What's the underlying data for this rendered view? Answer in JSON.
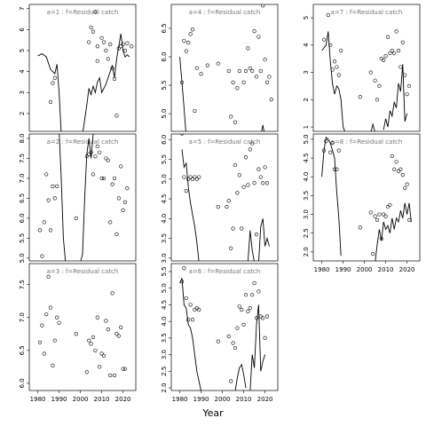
{
  "xlabel": "Year",
  "chart_data": [
    {
      "type": "scatter",
      "title": "a=1  :  f=Residual catch",
      "xlim": [
        1976,
        2026
      ],
      "ylim": [
        1.15,
        7.2
      ],
      "yticks": [
        2,
        3,
        4,
        5,
        6,
        7
      ],
      "series": [
        {
          "mode": "points",
          "x": [
            1986,
            1987,
            1988,
            2004,
            2005,
            2006,
            2007,
            2008,
            2008,
            2010,
            2011,
            2012,
            2013,
            2014,
            2015,
            2016,
            2017,
            2018,
            2019,
            2020,
            2021,
            2022,
            2024
          ],
          "values": [
            2.55,
            3.45,
            3.7,
            5.4,
            6.1,
            5.9,
            6.85,
            5.2,
            4.5,
            5.6,
            5.4,
            5.0,
            4.6,
            5.3,
            4.15,
            3.65,
            1.9,
            5.1,
            5.2,
            5.3,
            5.0,
            5.35,
            5.2
          ]
        },
        {
          "mode": "line",
          "x": [
            1980,
            1982,
            1984,
            1986,
            1988,
            1989,
            1990,
            1991,
            null,
            2001,
            2003,
            2004,
            2005,
            2006,
            2007,
            2008,
            2009,
            2010,
            2012,
            2014,
            2015,
            2016,
            2017,
            2018,
            2019,
            2020,
            2021,
            2022,
            2023
          ],
          "values": [
            4.75,
            4.85,
            4.7,
            4.1,
            3.9,
            4.35,
            3.0,
            1.0,
            null,
            1.0,
            2.4,
            3.2,
            2.9,
            3.3,
            3.0,
            3.5,
            3.7,
            3.0,
            3.4,
            4.0,
            4.3,
            3.7,
            4.6,
            5.2,
            5.8,
            5.0,
            4.7,
            4.8,
            4.7
          ]
        }
      ]
    },
    {
      "type": "scatter",
      "title": "a=2  :  f=Residual catch",
      "xlim": [
        1976,
        2026
      ],
      "ylim": [
        4.93,
        8.11
      ],
      "yticks": [
        {
          "value": 5,
          "label": "5.0"
        },
        5.5,
        {
          "value": 6,
          "label": "6.0"
        },
        6.5,
        {
          "value": 7,
          "label": "7.0"
        },
        7.5,
        {
          "value": 8,
          "label": "8.0"
        }
      ],
      "series": [
        {
          "mode": "points",
          "x": [
            1981,
            1982,
            1983,
            1984,
            1985,
            1986,
            1987,
            1988,
            1989,
            1998,
            2003,
            2004,
            2005,
            2006,
            2007,
            2008,
            2009,
            2010,
            2011,
            2012,
            2013,
            2014,
            2015,
            2016,
            2017,
            2018,
            2019,
            2020,
            2021,
            2022
          ],
          "values": [
            5.7,
            5.05,
            5.9,
            7.1,
            6.45,
            5.7,
            6.8,
            6.5,
            6.8,
            6.0,
            7.55,
            7.6,
            7.65,
            7.1,
            7.55,
            7.8,
            7.65,
            7.0,
            7.0,
            7.5,
            7.45,
            5.9,
            6.85,
            7.0,
            5.6,
            6.5,
            7.3,
            6.2,
            6.4,
            6.75
          ]
        },
        {
          "mode": "line",
          "x": [
            1990,
            1991,
            1992,
            1993,
            null,
            2000,
            2001,
            2002,
            2003,
            2004,
            2005,
            2006,
            2007
          ],
          "values": [
            8.2,
            7.0,
            5.5,
            4.9,
            null,
            4.9,
            5.1,
            6.5,
            7.6,
            8.0,
            7.5,
            8.1,
            8.2
          ]
        }
      ]
    },
    {
      "type": "scatter",
      "title": "a=3  :  f=Residual catch",
      "xlim": [
        1976,
        2026
      ],
      "ylim": [
        5.89,
        7.82
      ],
      "yticks": [
        {
          "value": 6,
          "label": "6.0"
        },
        6.5,
        {
          "value": 7,
          "label": "7.0"
        },
        7.5
      ],
      "xticks": [
        1980,
        1990,
        2000,
        2010,
        2020
      ],
      "series": [
        {
          "mode": "points",
          "x": [
            1981,
            1982,
            1983,
            1984,
            1985,
            1986,
            1987,
            1988,
            1989,
            1990,
            1998,
            2003,
            2004,
            2005,
            2006,
            2007,
            2008,
            2009,
            2010,
            2011,
            2012,
            2013,
            2014,
            2015,
            2016,
            2017,
            2018,
            2019,
            2020,
            2021
          ],
          "values": [
            6.62,
            6.88,
            6.45,
            7.05,
            7.62,
            7.15,
            6.27,
            6.65,
            7.0,
            6.92,
            6.75,
            6.17,
            6.65,
            6.6,
            6.7,
            6.5,
            7.0,
            6.25,
            6.45,
            6.42,
            6.95,
            6.82,
            6.12,
            7.37,
            6.12,
            6.75,
            6.72,
            6.85,
            6.22,
            6.22
          ]
        }
      ]
    },
    {
      "type": "scatter",
      "title": "a=4  :  f=Residual catch",
      "xlim": [
        1976,
        2026
      ],
      "ylim": [
        4.69,
        6.92
      ],
      "yticks": [
        {
          "value": 5,
          "label": "5.0"
        },
        5.5,
        {
          "value": 6,
          "label": "6.0"
        },
        6.5
      ],
      "series": [
        {
          "mode": "points",
          "x": [
            1981,
            1982,
            1983,
            1984,
            1985,
            1986,
            1987,
            1988,
            1990,
            1993,
            1998,
            2003,
            2004,
            2005,
            2006,
            2007,
            2008,
            2010,
            2011,
            2012,
            2013,
            2014,
            2015,
            2016,
            2017,
            2018,
            2019,
            2020,
            2021,
            2022,
            2023
          ],
          "values": [
            5.55,
            6.28,
            6.1,
            6.25,
            6.4,
            6.48,
            5.05,
            5.8,
            5.7,
            5.85,
            5.88,
            5.75,
            4.95,
            5.55,
            4.85,
            5.45,
            5.75,
            5.55,
            5.75,
            6.15,
            5.8,
            5.75,
            6.45,
            5.65,
            6.35,
            5.75,
            6.9,
            5.95,
            5.55,
            5.65,
            5.25
          ]
        },
        {
          "mode": "line",
          "x": [
            1980,
            1981,
            1982,
            1983,
            null,
            2018,
            2019,
            2020
          ],
          "values": [
            6.0,
            5.55,
            5.1,
            4.6,
            null,
            4.6,
            4.8,
            4.6
          ]
        }
      ]
    },
    {
      "type": "scatter",
      "title": "a=5  :  f=Residual catch",
      "xlim": [
        1976,
        2026
      ],
      "ylim": [
        2.93,
        6.14
      ],
      "yticks": [
        {
          "value": 3,
          "label": "3.0"
        },
        3.5,
        {
          "value": 4,
          "label": "4.0"
        },
        4.5,
        {
          "value": 5,
          "label": "5.0"
        },
        5.5,
        {
          "value": 6,
          "label": "6.0"
        }
      ],
      "series": [
        {
          "mode": "points",
          "x": [
            1981,
            1982,
            1983,
            1984,
            1985,
            1986,
            1987,
            1988,
            1989,
            1998,
            2002,
            2003,
            2004,
            2005,
            2006,
            2007,
            2008,
            2009,
            2010,
            2011,
            2012,
            2013,
            2014,
            2015,
            2016,
            2017,
            2018,
            2019,
            2020,
            2021
          ],
          "values": [
            6.15,
            5.05,
            4.7,
            5.0,
            5.05,
            5.0,
            5.05,
            5.0,
            5.05,
            4.3,
            4.3,
            4.45,
            3.25,
            3.75,
            5.35,
            4.65,
            5.1,
            3.75,
            4.8,
            5.55,
            4.85,
            5.75,
            5.9,
            4.9,
            3.6,
            5.25,
            5.05,
            4.9,
            5.3,
            4.9
          ]
        },
        {
          "mode": "line",
          "x": [
            1981,
            1982,
            1983,
            1984,
            1985,
            1986,
            1987,
            1988,
            1989,
            null,
            2012,
            2013,
            2014,
            2015,
            null,
            2017,
            2018,
            2019,
            2020,
            2021,
            2022
          ],
          "values": [
            5.75,
            5.3,
            5.4,
            4.8,
            4.4,
            4.1,
            3.8,
            3.4,
            2.9,
            null,
            2.9,
            3.7,
            3.2,
            2.9,
            null,
            2.9,
            3.8,
            4.0,
            3.3,
            3.5,
            3.3
          ]
        }
      ]
    },
    {
      "type": "scatter",
      "title": "a=6  :  f=Residual catch",
      "xlim": [
        1976,
        2026
      ],
      "ylim": [
        1.92,
        5.74
      ],
      "yticks": [
        {
          "value": 2,
          "label": "2.0"
        },
        2.5,
        {
          "value": 3,
          "label": "3.0"
        },
        3.5,
        {
          "value": 4,
          "label": "4.0"
        },
        4.5,
        {
          "value": 5,
          "label": "5.0"
        },
        5.5
      ],
      "xticks": [
        1980,
        1990,
        2000,
        2010,
        2020
      ],
      "series": [
        {
          "mode": "points",
          "x": [
            1981,
            1982,
            1983,
            1984,
            1985,
            1986,
            1987,
            1988,
            1989,
            1998,
            2003,
            2004,
            2005,
            2006,
            2007,
            2008,
            2009,
            2010,
            2011,
            2012,
            2013,
            2014,
            2015,
            2016,
            2017,
            2018,
            2019,
            2020,
            2021
          ],
          "values": [
            5.2,
            5.6,
            4.7,
            4.05,
            4.5,
            4.05,
            4.35,
            4.4,
            4.35,
            3.4,
            3.55,
            2.2,
            3.35,
            3.2,
            3.8,
            4.45,
            4.35,
            3.9,
            4.8,
            4.3,
            4.4,
            4.8,
            5.15,
            4.1,
            4.9,
            4.15,
            4.1,
            3.5,
            4.15
          ]
        },
        {
          "mode": "line",
          "x": [
            1980,
            1981,
            1982,
            1983,
            1984,
            1985,
            1986,
            1987,
            1988,
            1989,
            1990,
            null,
            2006,
            2007,
            2008,
            2009,
            2010,
            2011,
            null,
            2013,
            2014,
            2015,
            2016,
            2017,
            2018,
            2019,
            2020
          ],
          "values": [
            5.15,
            5.3,
            4.5,
            4.4,
            3.9,
            3.8,
            3.5,
            3.0,
            2.5,
            2.2,
            1.9,
            null,
            1.9,
            2.3,
            2.6,
            2.7,
            2.4,
            2.0,
            null,
            1.9,
            3.0,
            2.6,
            3.9,
            4.5,
            2.5,
            2.8,
            3.0
          ]
        }
      ]
    },
    {
      "type": "scatter",
      "title": "a=7  :  f=Residual catch",
      "xlim": [
        1976,
        2026
      ],
      "ylim": [
        0.84,
        5.49
      ],
      "yticks": [
        1,
        2,
        3,
        4,
        5
      ],
      "series": [
        {
          "mode": "points",
          "x": [
            1981,
            1983,
            1984,
            1985,
            1986,
            1987,
            1988,
            1989,
            1998,
            2003,
            2005,
            2006,
            2007,
            2008,
            2009,
            2010,
            2011,
            2012,
            2013,
            2014,
            2015,
            2016,
            2017,
            2018,
            2019,
            2020,
            2021
          ],
          "values": [
            4.2,
            5.1,
            4.0,
            3.1,
            3.4,
            3.2,
            2.9,
            3.8,
            2.1,
            3.0,
            2.7,
            2.0,
            2.5,
            3.5,
            3.45,
            3.6,
            4.3,
            3.7,
            3.8,
            3.7,
            4.5,
            3.8,
            3.2,
            4.1,
            2.9,
            2.2,
            2.5
          ]
        },
        {
          "mode": "line",
          "x": [
            1980,
            1982,
            1983,
            1984,
            1985,
            1986,
            1987,
            1988,
            1989,
            1990,
            1991,
            null,
            2003,
            2004,
            2005,
            null,
            2009,
            2010,
            2011,
            2012,
            2013,
            2014,
            2015,
            2016,
            2017,
            2018,
            2019,
            2020
          ],
          "values": [
            3.8,
            4.0,
            4.5,
            3.4,
            2.6,
            2.2,
            2.5,
            2.4,
            2.0,
            1.0,
            0.8,
            null,
            0.8,
            1.1,
            0.8,
            null,
            0.9,
            1.3,
            1.0,
            1.6,
            1.4,
            1.9,
            1.7,
            2.6,
            2.3,
            3.3,
            1.2,
            1.5
          ]
        }
      ]
    },
    {
      "type": "scatter",
      "title": "a=8  :  f=Residual catch",
      "xlim": [
        1976,
        2026
      ],
      "ylim": [
        1.76,
        5.14
      ],
      "yticks": [
        {
          "value": 2,
          "label": "2.0"
        },
        2.5,
        {
          "value": 3,
          "label": "3.0"
        },
        3.5,
        {
          "value": 4,
          "label": "4.0"
        },
        4.5,
        {
          "value": 5,
          "label": "5.0"
        }
      ],
      "xticks": [
        1980,
        1990,
        2000,
        2010,
        2020
      ],
      "series": [
        {
          "mode": "points",
          "x": [
            1981,
            1982,
            1983,
            1984,
            1985,
            1986,
            1987,
            1988,
            1998,
            2003,
            2004,
            2005,
            2006,
            2007,
            2008,
            2009,
            2010,
            2011,
            2012,
            2013,
            2014,
            2015,
            2016,
            2017,
            2018,
            2019,
            2020,
            2021
          ],
          "values": [
            4.7,
            4.95,
            5.2,
            4.65,
            4.9,
            4.2,
            4.2,
            4.7,
            2.65,
            3.05,
            1.95,
            2.95,
            2.85,
            3.0,
            2.35,
            3.0,
            2.95,
            3.2,
            3.25,
            4.55,
            4.2,
            4.4,
            4.15,
            4.2,
            4.05,
            3.7,
            3.8,
            2.85
          ]
        },
        {
          "mode": "line",
          "x": [
            1980,
            1981,
            1982,
            1983,
            1984,
            1985,
            1986,
            1987,
            1988,
            1989,
            null,
            2005,
            2006,
            2007,
            2008,
            2009,
            2010,
            2011,
            2012,
            2013,
            2014,
            2015,
            2016,
            2017,
            2018,
            2019,
            2020,
            2021,
            2022
          ],
          "values": [
            4.0,
            4.7,
            5.05,
            5.0,
            4.9,
            4.7,
            4.5,
            3.6,
            2.9,
            1.9,
            null,
            1.7,
            2.2,
            2.6,
            2.3,
            2.8,
            2.6,
            2.7,
            2.5,
            2.9,
            2.6,
            2.9,
            2.8,
            3.1,
            2.9,
            3.3,
            3.0,
            3.3,
            2.8
          ]
        }
      ]
    }
  ]
}
